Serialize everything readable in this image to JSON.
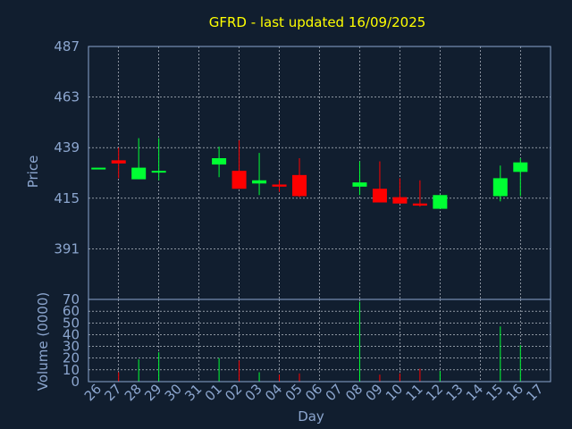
{
  "title": "GFRD - last updated 16/09/2025",
  "chart_data": {
    "type": "candlestick",
    "title": "GFRD - last updated 16/09/2025",
    "xlabel": "Day",
    "price_ylabel": "Price",
    "volume_ylabel": "Volume (0000)",
    "x_ticks": [
      "26",
      "27",
      "28",
      "29",
      "30",
      "31",
      "01",
      "02",
      "03",
      "04",
      "05",
      "06",
      "07",
      "08",
      "09",
      "10",
      "11",
      "12",
      "13",
      "14",
      "15",
      "16",
      "17"
    ],
    "price_ylim": [
      367,
      487
    ],
    "price_ticks": [
      391,
      415,
      439,
      463,
      487
    ],
    "volume_ylim": [
      0,
      70
    ],
    "volume_ticks": [
      0,
      10,
      20,
      30,
      40,
      50,
      60,
      70
    ],
    "colors": {
      "up": "#00ff33",
      "down": "#ff0000",
      "background": "#111e2f",
      "axis": "#8ca6cf",
      "title": "#ffff00"
    },
    "candles": [
      {
        "day": "26",
        "open": 429.5,
        "close": 429.5,
        "high": 429.5,
        "low": 429.5,
        "volume": 0
      },
      {
        "day": "27",
        "open": 433.0,
        "close": 431.5,
        "high": 439.0,
        "low": 424.5,
        "volume": 8
      },
      {
        "day": "28",
        "open": 424.0,
        "close": 429.5,
        "high": 443.5,
        "low": 424.0,
        "volume": 19
      },
      {
        "day": "29",
        "open": 427.5,
        "close": 428.0,
        "high": 443.5,
        "low": 423.5,
        "volume": 25
      },
      {
        "day": "01",
        "open": 431.0,
        "close": 434.0,
        "high": 439.5,
        "low": 425.0,
        "volume": 20
      },
      {
        "day": "02",
        "open": 428.0,
        "close": 419.5,
        "high": 442.5,
        "low": 419.5,
        "volume": 18
      },
      {
        "day": "03",
        "open": 422.0,
        "close": 423.5,
        "high": 436.5,
        "low": 416.5,
        "volume": 8
      },
      {
        "day": "04",
        "open": 421.5,
        "close": 420.5,
        "high": 423.5,
        "low": 418.0,
        "volume": 6
      },
      {
        "day": "05",
        "open": 426.0,
        "close": 416.0,
        "high": 434.0,
        "low": 415.5,
        "volume": 7
      },
      {
        "day": "08",
        "open": 420.5,
        "close": 422.5,
        "high": 432.5,
        "low": 416.5,
        "volume": 68
      },
      {
        "day": "09",
        "open": 419.5,
        "close": 413.0,
        "high": 432.5,
        "low": 413.0,
        "volume": 6
      },
      {
        "day": "10",
        "open": 415.5,
        "close": 412.5,
        "high": 424.5,
        "low": 412.5,
        "volume": 7
      },
      {
        "day": "11",
        "open": 412.5,
        "close": 411.5,
        "high": 423.5,
        "low": 411.0,
        "volume": 11
      },
      {
        "day": "12",
        "open": 410.0,
        "close": 416.5,
        "high": 416.5,
        "low": 410.0,
        "volume": 9
      },
      {
        "day": "15",
        "open": 416.0,
        "close": 424.5,
        "high": 430.5,
        "low": 413.5,
        "volume": 47
      },
      {
        "day": "16",
        "open": 427.5,
        "close": 432.0,
        "high": 434.0,
        "low": 416.0,
        "volume": 31
      }
    ]
  }
}
